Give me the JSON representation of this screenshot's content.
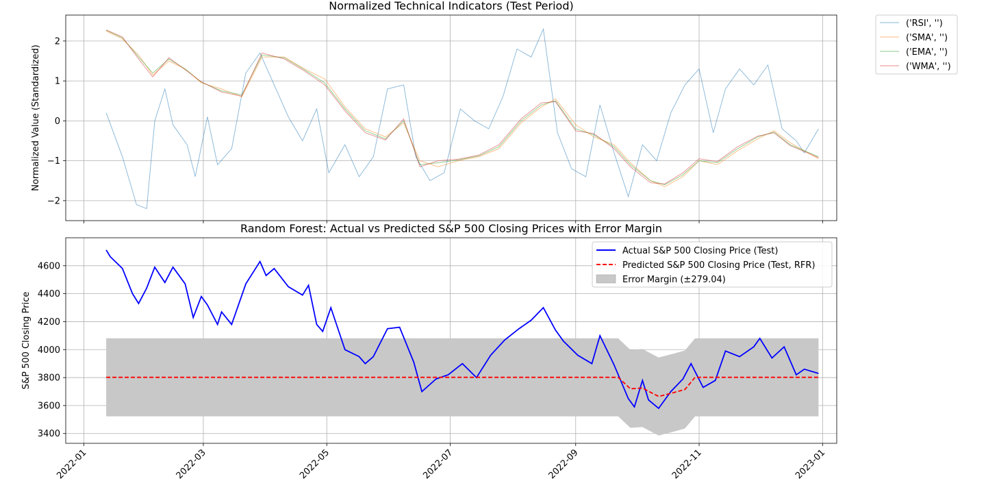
{
  "chart_data": [
    {
      "type": "line",
      "title": "Normalized Technical Indicators (Test Period)",
      "xlabel": "",
      "ylabel": "Normalized Value (Standardized)",
      "ylim": [
        -2.5,
        2.65
      ],
      "xlim": [
        "2021-12-23",
        "2023-01-08"
      ],
      "yticks": [
        -2,
        -1,
        0,
        1,
        2
      ],
      "ytick_labels": [
        "−2",
        "−1",
        "0",
        "1",
        "2"
      ],
      "grid": true,
      "legend_position": "outside-right",
      "series": [
        {
          "name": "('RSI', '')",
          "color": "#1f77b4",
          "x": [
            "2022-01-12",
            "2022-01-20",
            "2022-01-27",
            "2022-02-01",
            "2022-02-05",
            "2022-02-10",
            "2022-02-14",
            "2022-02-21",
            "2022-02-25",
            "2022-03-03",
            "2022-03-08",
            "2022-03-15",
            "2022-03-22",
            "2022-03-29",
            "2022-04-05",
            "2022-04-12",
            "2022-04-19",
            "2022-04-26",
            "2022-05-02",
            "2022-05-10",
            "2022-05-17",
            "2022-05-24",
            "2022-05-31",
            "2022-06-08",
            "2022-06-14",
            "2022-06-21",
            "2022-06-28",
            "2022-07-06",
            "2022-07-13",
            "2022-07-20",
            "2022-07-27",
            "2022-08-03",
            "2022-08-10",
            "2022-08-16",
            "2022-08-23",
            "2022-08-30",
            "2022-09-06",
            "2022-09-13",
            "2022-09-20",
            "2022-09-27",
            "2022-10-04",
            "2022-10-11",
            "2022-10-18",
            "2022-10-25",
            "2022-11-01",
            "2022-11-08",
            "2022-11-14",
            "2022-11-21",
            "2022-11-28",
            "2022-12-05",
            "2022-12-12",
            "2022-12-19",
            "2022-12-23",
            "2022-12-30"
          ],
          "y": [
            0.2,
            -0.9,
            -2.1,
            -2.2,
            0.0,
            0.8,
            -0.1,
            -0.6,
            -1.4,
            0.1,
            -1.1,
            -0.7,
            1.2,
            1.7,
            0.9,
            0.1,
            -0.5,
            0.3,
            -1.3,
            -0.6,
            -1.4,
            -0.9,
            0.8,
            0.9,
            -0.9,
            -1.5,
            -1.3,
            0.3,
            0.0,
            -0.2,
            0.6,
            1.8,
            1.6,
            2.3,
            -0.3,
            -1.2,
            -1.4,
            0.4,
            -0.8,
            -1.9,
            -0.6,
            -1.0,
            0.2,
            0.9,
            1.3,
            -0.3,
            0.8,
            1.3,
            0.9,
            1.4,
            -0.2,
            -0.5,
            -0.8,
            -0.2
          ]
        },
        {
          "name": "('SMA', '')",
          "color": "#ff7f0e",
          "x": [
            "2022-01-12",
            "2022-01-20",
            "2022-01-28",
            "2022-02-04",
            "2022-02-12",
            "2022-02-20",
            "2022-02-28",
            "2022-03-10",
            "2022-03-20",
            "2022-03-30",
            "2022-04-10",
            "2022-04-20",
            "2022-04-30",
            "2022-05-10",
            "2022-05-20",
            "2022-05-30",
            "2022-06-08",
            "2022-06-16",
            "2022-06-25",
            "2022-07-05",
            "2022-07-15",
            "2022-07-25",
            "2022-08-05",
            "2022-08-15",
            "2022-08-22",
            "2022-09-01",
            "2022-09-10",
            "2022-09-20",
            "2022-09-28",
            "2022-10-08",
            "2022-10-15",
            "2022-10-24",
            "2022-11-01",
            "2022-11-10",
            "2022-11-20",
            "2022-11-30",
            "2022-12-08",
            "2022-12-16",
            "2022-12-30"
          ],
          "y": [
            2.25,
            2.05,
            1.65,
            1.15,
            1.5,
            1.3,
            0.95,
            0.8,
            0.6,
            1.6,
            1.6,
            1.3,
            1.05,
            0.35,
            -0.2,
            -0.4,
            -0.05,
            -1.0,
            -1.15,
            -1.0,
            -0.9,
            -0.7,
            -0.05,
            0.35,
            0.55,
            -0.1,
            -0.4,
            -0.6,
            -1.05,
            -1.5,
            -1.65,
            -1.4,
            -1.0,
            -1.1,
            -0.75,
            -0.45,
            -0.25,
            -0.55,
            -0.95
          ]
        },
        {
          "name": "('EMA', '')",
          "color": "#2ca02c",
          "x": [
            "2022-01-12",
            "2022-01-20",
            "2022-01-28",
            "2022-02-04",
            "2022-02-12",
            "2022-02-20",
            "2022-02-28",
            "2022-03-10",
            "2022-03-20",
            "2022-03-30",
            "2022-04-10",
            "2022-04-20",
            "2022-04-30",
            "2022-05-10",
            "2022-05-20",
            "2022-05-30",
            "2022-06-08",
            "2022-06-16",
            "2022-06-25",
            "2022-07-05",
            "2022-07-15",
            "2022-07-25",
            "2022-08-05",
            "2022-08-15",
            "2022-08-22",
            "2022-09-01",
            "2022-09-10",
            "2022-09-20",
            "2022-09-28",
            "2022-10-08",
            "2022-10-15",
            "2022-10-24",
            "2022-11-01",
            "2022-11-10",
            "2022-11-20",
            "2022-11-30",
            "2022-12-08",
            "2022-12-16",
            "2022-12-30"
          ],
          "y": [
            2.27,
            2.08,
            1.6,
            1.2,
            1.55,
            1.3,
            0.97,
            0.75,
            0.65,
            1.65,
            1.58,
            1.28,
            0.95,
            0.3,
            -0.25,
            -0.45,
            0.0,
            -1.1,
            -1.05,
            -0.98,
            -0.88,
            -0.65,
            0.0,
            0.4,
            0.5,
            -0.2,
            -0.35,
            -0.65,
            -1.1,
            -1.5,
            -1.6,
            -1.35,
            -1.0,
            -1.05,
            -0.7,
            -0.4,
            -0.28,
            -0.6,
            -0.9
          ]
        },
        {
          "name": "('WMA', '')",
          "color": "#d62728",
          "x": [
            "2022-01-12",
            "2022-01-20",
            "2022-01-28",
            "2022-02-04",
            "2022-02-12",
            "2022-02-20",
            "2022-02-28",
            "2022-03-10",
            "2022-03-20",
            "2022-03-30",
            "2022-04-10",
            "2022-04-20",
            "2022-04-30",
            "2022-05-10",
            "2022-05-20",
            "2022-05-30",
            "2022-06-08",
            "2022-06-16",
            "2022-06-25",
            "2022-07-05",
            "2022-07-15",
            "2022-07-25",
            "2022-08-05",
            "2022-08-15",
            "2022-08-22",
            "2022-09-01",
            "2022-09-10",
            "2022-09-20",
            "2022-09-28",
            "2022-10-08",
            "2022-10-15",
            "2022-10-24",
            "2022-11-01",
            "2022-11-10",
            "2022-11-20",
            "2022-11-30",
            "2022-12-08",
            "2022-12-16",
            "2022-12-30"
          ],
          "y": [
            2.28,
            2.1,
            1.55,
            1.1,
            1.58,
            1.28,
            0.98,
            0.72,
            0.62,
            1.7,
            1.55,
            1.25,
            0.9,
            0.25,
            -0.3,
            -0.48,
            0.05,
            -1.15,
            -1.0,
            -0.96,
            -0.86,
            -0.6,
            0.05,
            0.45,
            0.48,
            -0.25,
            -0.32,
            -0.7,
            -1.15,
            -1.55,
            -1.58,
            -1.3,
            -0.95,
            -1.02,
            -0.65,
            -0.38,
            -0.3,
            -0.62,
            -0.92
          ]
        }
      ],
      "xtick_labels": []
    },
    {
      "type": "line",
      "title": "Random Forest: Actual vs Predicted S&P 500 Closing Prices with Error Margin",
      "xlabel": "",
      "ylabel": "S&P 500 Closing Price",
      "ylim": [
        3330,
        4800
      ],
      "xlim": [
        "2021-12-23",
        "2023-01-08"
      ],
      "yticks": [
        3400,
        3600,
        3800,
        4000,
        4200,
        4400,
        4600
      ],
      "ytick_labels": [
        "3400",
        "3600",
        "3800",
        "4000",
        "4200",
        "4400",
        "4600"
      ],
      "xticks": [
        "2022-01-01",
        "2022-03-01",
        "2022-05-01",
        "2022-07-01",
        "2022-09-01",
        "2022-11-01",
        "2023-01-01"
      ],
      "xtick_labels": [
        "2022-01",
        "2022-03",
        "2022-05",
        "2022-07",
        "2022-09",
        "2022-11",
        "2023-01"
      ],
      "grid": true,
      "legend_position": "upper right",
      "error_margin": 279.04,
      "series": [
        {
          "name": "Actual S&P 500 Closing Price (Test)",
          "color": "#0000ff",
          "style": "solid",
          "x": [
            "2022-01-12",
            "2022-01-14",
            "2022-01-20",
            "2022-01-25",
            "2022-01-28",
            "2022-02-01",
            "2022-02-05",
            "2022-02-10",
            "2022-02-14",
            "2022-02-20",
            "2022-02-24",
            "2022-02-28",
            "2022-03-03",
            "2022-03-08",
            "2022-03-10",
            "2022-03-15",
            "2022-03-22",
            "2022-03-29",
            "2022-04-01",
            "2022-04-05",
            "2022-04-12",
            "2022-04-19",
            "2022-04-22",
            "2022-04-26",
            "2022-04-29",
            "2022-05-03",
            "2022-05-10",
            "2022-05-17",
            "2022-05-20",
            "2022-05-24",
            "2022-05-31",
            "2022-06-06",
            "2022-06-13",
            "2022-06-17",
            "2022-06-24",
            "2022-06-30",
            "2022-07-07",
            "2022-07-14",
            "2022-07-21",
            "2022-07-28",
            "2022-08-04",
            "2022-08-10",
            "2022-08-16",
            "2022-08-22",
            "2022-08-26",
            "2022-09-02",
            "2022-09-09",
            "2022-09-13",
            "2022-09-20",
            "2022-09-27",
            "2022-09-30",
            "2022-10-04",
            "2022-10-07",
            "2022-10-12",
            "2022-10-18",
            "2022-10-24",
            "2022-10-28",
            "2022-11-03",
            "2022-11-09",
            "2022-11-14",
            "2022-11-21",
            "2022-11-28",
            "2022-12-01",
            "2022-12-07",
            "2022-12-13",
            "2022-12-19",
            "2022-12-23",
            "2022-12-30"
          ],
          "y": [
            4713,
            4665,
            4580,
            4400,
            4330,
            4440,
            4590,
            4480,
            4590,
            4470,
            4230,
            4380,
            4320,
            4180,
            4270,
            4180,
            4470,
            4630,
            4530,
            4580,
            4450,
            4390,
            4460,
            4180,
            4130,
            4300,
            4000,
            3950,
            3900,
            3950,
            4150,
            4160,
            3910,
            3700,
            3790,
            3820,
            3900,
            3800,
            3960,
            4070,
            4150,
            4210,
            4300,
            4140,
            4060,
            3960,
            3900,
            4100,
            3890,
            3650,
            3590,
            3780,
            3640,
            3580,
            3700,
            3790,
            3900,
            3730,
            3780,
            3990,
            3950,
            4020,
            4080,
            3940,
            4020,
            3820,
            3860,
            3830
          ]
        },
        {
          "name": "Predicted S&P 500 Closing Price (Test, RFR)",
          "color": "#ff0000",
          "style": "dashed",
          "x": [
            "2022-01-12",
            "2022-09-22",
            "2022-09-28",
            "2022-10-04",
            "2022-10-12",
            "2022-10-20",
            "2022-10-25",
            "2022-10-30",
            "2022-12-30"
          ],
          "y": [
            3802,
            3802,
            3720,
            3725,
            3665,
            3695,
            3715,
            3802,
            3802
          ]
        },
        {
          "name": "Error Margin (±279.04)",
          "color": "#c8c8c8",
          "style": "band"
        }
      ]
    }
  ]
}
